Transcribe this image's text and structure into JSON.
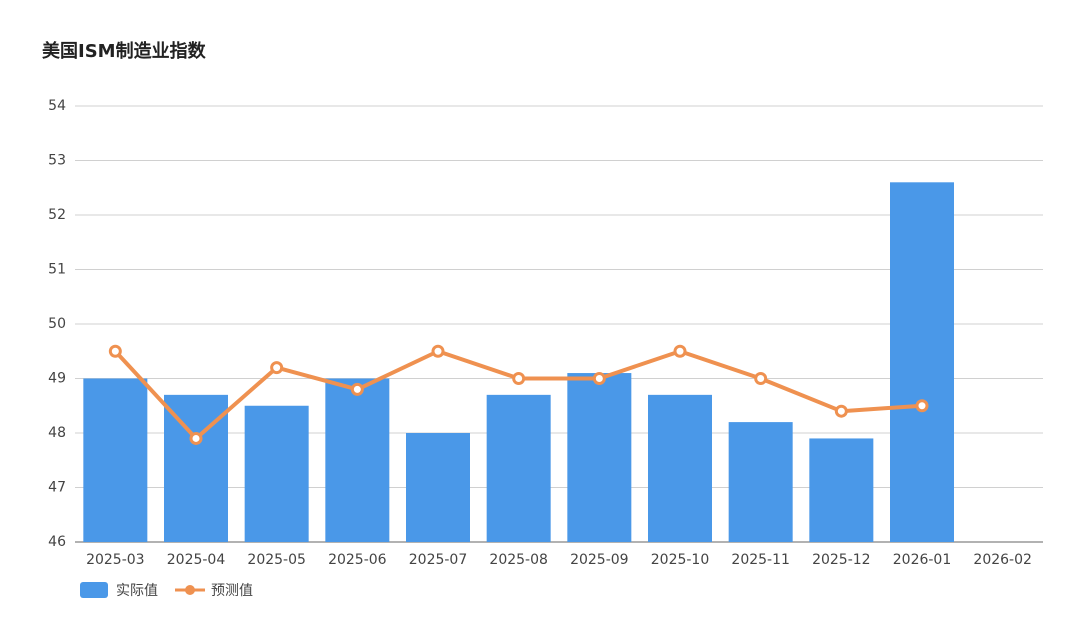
{
  "chart_data": {
    "type": "bar",
    "title": "美国ISM制造业指数",
    "categories": [
      "2025-03",
      "2025-04",
      "2025-05",
      "2025-06",
      "2025-07",
      "2025-08",
      "2025-09",
      "2025-10",
      "2025-11",
      "2025-12",
      "2026-01",
      "2026-02"
    ],
    "series": [
      {
        "name": "实际值",
        "type": "bar",
        "color": "#4a98e8",
        "values": [
          49.0,
          48.7,
          48.5,
          49.0,
          48.0,
          48.7,
          49.1,
          48.7,
          48.2,
          47.9,
          52.6,
          null
        ]
      },
      {
        "name": "预测值",
        "type": "line",
        "color": "#ef9150",
        "values": [
          49.5,
          47.9,
          49.2,
          48.8,
          49.5,
          49.0,
          49.0,
          49.5,
          49.0,
          48.4,
          48.5,
          null
        ]
      }
    ],
    "ylim": [
      46,
      54
    ],
    "yticks": [
      46,
      47,
      48,
      49,
      50,
      51,
      52,
      53,
      54
    ],
    "grid": true
  }
}
